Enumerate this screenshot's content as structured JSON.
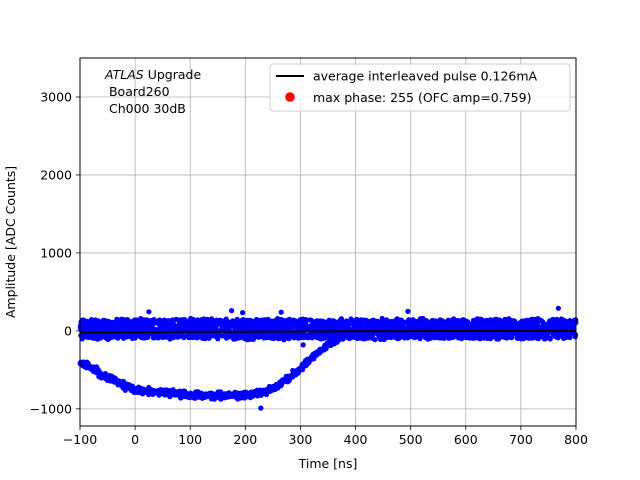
{
  "chart_data": {
    "type": "scatter",
    "xlabel": "Time [ns]",
    "ylabel": "Amplitude [ADC Counts]",
    "xlim": [
      -100,
      800
    ],
    "ylim": [
      -1220,
      3500
    ],
    "xticks": [
      -100,
      0,
      100,
      200,
      300,
      400,
      500,
      600,
      700,
      800
    ],
    "yticks": [
      -1000,
      0,
      1000,
      2000,
      3000
    ],
    "xtick_labels": [
      "−100",
      "0",
      "100",
      "200",
      "300",
      "400",
      "500",
      "600",
      "700",
      "800"
    ],
    "ytick_labels": [
      "−1000",
      "0",
      "1000",
      "2000",
      "3000"
    ],
    "grid": true,
    "legend_position": "top-right",
    "annotation": {
      "line1_italic": "ATLAS",
      "line1_rest": " Upgrade",
      "line2": " Board260",
      "line3": " Ch000 30dB"
    },
    "series": [
      {
        "name": "average interleaved pulse 0.126mA",
        "kind": "line",
        "color": "#000000",
        "x": [
          -100,
          0,
          100,
          200,
          300,
          400,
          500,
          600,
          700,
          800
        ],
        "y": [
          -20,
          -15,
          -12,
          -10,
          -8,
          -5,
          -3,
          -2,
          -1,
          0
        ]
      },
      {
        "name": "max phase: 255 (OFC amp=0.759)",
        "kind": "marker",
        "color": "#ff0000",
        "x": [],
        "y": []
      },
      {
        "name": "",
        "kind": "scatter",
        "color": "#0000ff",
        "baseline_noise_band": [
          -100,
          150
        ],
        "pulse_envelope": {
          "x": [
            -100,
            -60,
            -20,
            0,
            50,
            100,
            150,
            200,
            230,
            260,
            290,
            320,
            350,
            380,
            420
          ],
          "y": [
            -400,
            -560,
            -700,
            -760,
            -790,
            -820,
            -830,
            -820,
            -800,
            -700,
            -550,
            -350,
            -180,
            -70,
            -10
          ]
        },
        "outliers": [
          {
            "x": 25,
            "y": 245
          },
          {
            "x": 175,
            "y": 260
          },
          {
            "x": 195,
            "y": 235
          },
          {
            "x": 265,
            "y": 240
          },
          {
            "x": 495,
            "y": 250
          },
          {
            "x": 768,
            "y": 290
          },
          {
            "x": 228,
            "y": -990
          },
          {
            "x": 305,
            "y": -180
          }
        ]
      }
    ]
  }
}
